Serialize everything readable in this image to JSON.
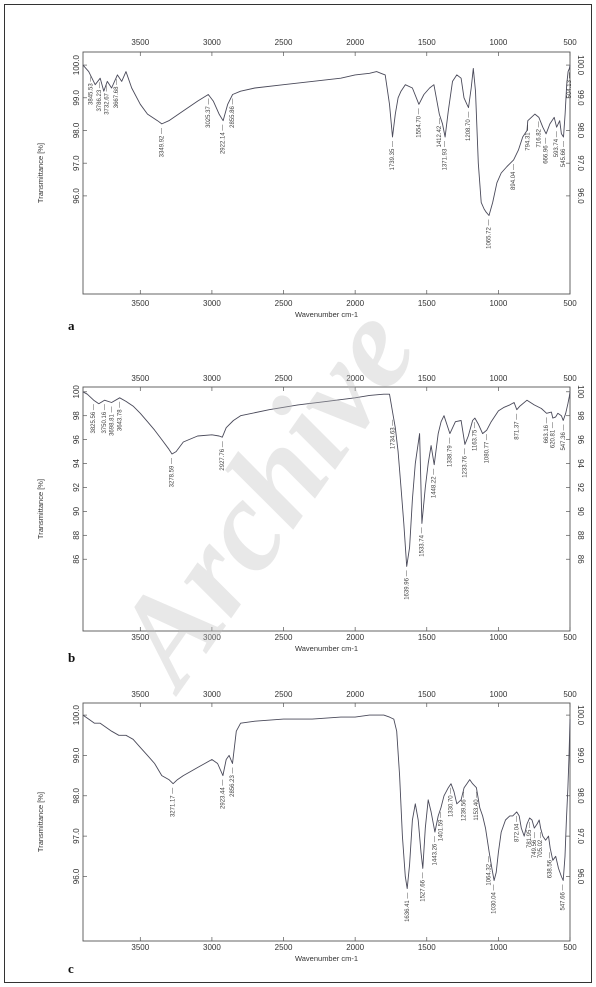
{
  "watermark": "Archive",
  "chart_data": [
    {
      "type": "line",
      "panel": "a",
      "xlabel": "Wavenumber cm-1",
      "ylabel": "Transmittance [%]",
      "xlim": [
        3900,
        500
      ],
      "ylim": [
        93.0,
        100.4
      ],
      "x_ticks": [
        3500,
        3000,
        2500,
        2000,
        1500,
        1000,
        500
      ],
      "y_ticks": [
        96.0,
        97.0,
        98.0,
        99.0,
        100.0
      ],
      "series": [
        {
          "x": [
            3900,
            3860,
            3815,
            3780,
            3755,
            3730,
            3700,
            3660,
            3630,
            3600,
            3560,
            3500,
            3450,
            3380,
            3349.92,
            3300,
            3200,
            3100,
            3025.37,
            2990,
            2950,
            2922.14,
            2890,
            2855.86,
            2800,
            2700,
            2500,
            2300,
            2100,
            2000,
            1900,
            1850,
            1820,
            1790,
            1760,
            1739.35,
            1720,
            1700,
            1680,
            1650,
            1600,
            1554.7,
            1520,
            1480,
            1450,
            1412.42,
            1390,
            1371.93,
            1350,
            1320,
            1290,
            1260,
            1240,
            1220,
            1208.7,
            1190,
            1175,
            1160,
            1140,
            1120,
            1100,
            1085,
            1065.72,
            1040,
            1010,
            980,
            940,
            894.04,
            860,
            830,
            800,
            794.31,
            770,
            745,
            716.82,
            690,
            666.96,
            640,
            610,
            593.74,
            572,
            560,
            545.66,
            534,
            523,
            513,
            504,
            500
          ],
          "y": [
            100.0,
            99.8,
            99.4,
            99.6,
            99.2,
            99.5,
            99.3,
            99.7,
            99.5,
            99.8,
            99.3,
            98.8,
            98.5,
            98.3,
            98.2,
            98.3,
            98.6,
            98.9,
            99.1,
            98.9,
            98.5,
            98.3,
            98.8,
            99.1,
            99.2,
            99.3,
            99.4,
            99.5,
            99.6,
            99.7,
            99.75,
            99.8,
            99.75,
            99.7,
            98.8,
            97.8,
            98.5,
            99.0,
            99.2,
            99.4,
            99.3,
            98.8,
            99.1,
            99.3,
            99.4,
            98.5,
            98.2,
            97.8,
            98.6,
            99.5,
            99.7,
            99.6,
            99.0,
            98.8,
            98.7,
            99.3,
            99.9,
            99.2,
            97.0,
            95.8,
            95.6,
            95.5,
            95.4,
            95.8,
            96.4,
            96.7,
            96.9,
            97.1,
            97.4,
            97.8,
            98.0,
            98.3,
            98.4,
            98.5,
            98.4,
            98.1,
            97.9,
            98.2,
            98.4,
            98.1,
            98.3,
            97.9,
            97.8,
            98.5,
            99.4,
            99.8,
            99.9,
            100.0
          ]
        }
      ],
      "peak_labels": [
        "3845.53",
        "3786.23",
        "3732.67",
        "3667.68",
        "3349.92",
        "3025.37",
        "2922.14",
        "2855.86",
        "1739.35",
        "1554.70",
        "1412.42",
        "1371.93",
        "1208.70",
        "1065.72",
        "894.04",
        "794.31",
        "716.82",
        "666.96",
        "593.74",
        "545.66",
        "504.13"
      ]
    },
    {
      "type": "line",
      "panel": "b",
      "xlabel": "Wavenumber cm-1",
      "ylabel": "Transmittance [%]",
      "xlim": [
        3900,
        500
      ],
      "ylim": [
        80,
        100.4
      ],
      "x_ticks": [
        3500,
        3000,
        2500,
        2000,
        1500,
        1000,
        500
      ],
      "y_ticks": [
        86,
        88,
        90,
        92,
        94,
        96,
        98,
        100
      ],
      "series": [
        {
          "x": [
            3900,
            3870,
            3825.56,
            3790,
            3750.16,
            3700,
            3643.78,
            3600,
            3550,
            3500,
            3450,
            3400,
            3350,
            3300,
            3278.59,
            3250,
            3200,
            3100,
            3000,
            2950,
            2927.76,
            2900,
            2850,
            2800,
            2600,
            2400,
            2200,
            2000,
            1900,
            1800,
            1760,
            1734.63,
            1720,
            1700,
            1680,
            1660,
            1639.96,
            1620,
            1600,
            1580,
            1550,
            1533.74,
            1510,
            1490,
            1470,
            1448.22,
            1420,
            1400,
            1380,
            1338.79,
            1300,
            1260,
            1233.76,
            1210,
            1180,
            1163.75,
            1140,
            1110,
            1080.77,
            1050,
            1000,
            960,
            920,
            890,
            871.37,
            850,
            800,
            750,
            700,
            663.16,
            630,
            620,
            600,
            585,
            560,
            547.36,
            530,
            515,
            505,
            500
          ],
          "y": [
            100,
            99.8,
            99.3,
            99.0,
            99.3,
            99.1,
            99.5,
            99.2,
            98.8,
            98.2,
            97.5,
            96.8,
            96.0,
            95.2,
            94.8,
            95.0,
            95.8,
            96.3,
            96.4,
            96.3,
            96.2,
            97.0,
            97.6,
            98.0,
            98.5,
            98.9,
            99.2,
            99.5,
            99.7,
            99.8,
            99.8,
            98.0,
            97.0,
            95.0,
            92.0,
            89.0,
            85.4,
            87.0,
            91.0,
            94.0,
            96.5,
            89.0,
            92.0,
            94.0,
            95.5,
            93.9,
            96.5,
            97.5,
            98.0,
            96.5,
            97.5,
            97.6,
            95.6,
            96.3,
            97.6,
            97.8,
            97.3,
            96.5,
            96.8,
            97.5,
            98.4,
            98.7,
            98.9,
            99.1,
            98.5,
            98.8,
            99.3,
            98.9,
            98.6,
            98.2,
            98.3,
            97.8,
            97.9,
            98.2,
            98.0,
            97.6,
            98.2,
            99.0,
            99.6,
            100.0
          ]
        }
      ],
      "peak_labels": [
        "3825.56",
        "3750.16",
        "3698.81",
        "3643.78",
        "3278.59",
        "2927.76",
        "1734.63",
        "1639.96",
        "1533.74",
        "1448.22",
        "1338.79",
        "1233.76",
        "1163.75",
        "1080.77",
        "871.37",
        "663.16",
        "620.81",
        "547.36"
      ]
    },
    {
      "type": "line",
      "panel": "c",
      "xlabel": "Wavenumber cm-1",
      "ylabel": "Transmittance [%]",
      "xlim": [
        3900,
        500
      ],
      "ylim": [
        94.4,
        100.3
      ],
      "x_ticks": [
        3500,
        3000,
        2500,
        2000,
        1500,
        1000,
        500
      ],
      "y_ticks": [
        96.0,
        97.0,
        98.0,
        99.0,
        100.0
      ],
      "series": [
        {
          "x": [
            3900,
            3860,
            3820,
            3780,
            3740,
            3700,
            3650,
            3600,
            3550,
            3500,
            3450,
            3400,
            3350,
            3300,
            3271.17,
            3240,
            3200,
            3150,
            3100,
            3050,
            3000,
            2960,
            2923.44,
            2900,
            2880,
            2856.23,
            2830,
            2800,
            2700,
            2500,
            2300,
            2100,
            2000,
            1900,
            1800,
            1760,
            1730,
            1710,
            1690,
            1670,
            1650,
            1636.41,
            1620,
            1600,
            1580,
            1560,
            1540,
            1527.66,
            1510,
            1490,
            1470,
            1443.26,
            1420,
            1401.59,
            1380,
            1350,
            1330.7,
            1310,
            1290,
            1260,
            1239.56,
            1220,
            1200,
            1180,
            1153.4,
            1130,
            1110,
            1090,
            1064.32,
            1045,
            1030.04,
            1015,
            1000,
            980,
            950,
            920,
            900,
            872.04,
            855,
            840,
            820,
            800,
            781.95,
            765,
            749.56,
            730,
            715,
            705.02,
            690,
            670,
            650,
            638.56,
            620,
            600,
            580,
            560,
            547.66,
            535,
            525,
            515,
            508,
            503,
            500
          ],
          "y": [
            100.0,
            99.9,
            99.8,
            99.8,
            99.7,
            99.6,
            99.5,
            99.5,
            99.4,
            99.2,
            99.0,
            98.8,
            98.5,
            98.4,
            98.3,
            98.4,
            98.5,
            98.6,
            98.7,
            98.8,
            98.9,
            98.8,
            98.5,
            98.9,
            99.0,
            98.8,
            99.6,
            99.8,
            99.85,
            99.9,
            99.9,
            99.95,
            99.95,
            100.0,
            100.0,
            99.95,
            99.9,
            99.6,
            98.5,
            97.0,
            96.0,
            95.7,
            96.3,
            97.4,
            97.8,
            97.4,
            96.6,
            96.2,
            97.2,
            97.9,
            97.6,
            97.1,
            97.5,
            97.7,
            98.0,
            98.2,
            98.3,
            98.1,
            97.8,
            97.9,
            98.2,
            98.3,
            98.4,
            98.3,
            98.2,
            97.7,
            97.5,
            97.2,
            96.6,
            96.2,
            95.9,
            96.1,
            96.6,
            97.1,
            97.4,
            97.5,
            97.5,
            97.6,
            97.5,
            97.2,
            97.0,
            97.3,
            97.45,
            97.4,
            97.2,
            97.3,
            97.4,
            97.2,
            97.0,
            96.9,
            97.0,
            96.7,
            96.4,
            96.5,
            96.2,
            96.0,
            95.9,
            96.5,
            97.4,
            98.2,
            98.9,
            99.5,
            99.9
          ]
        }
      ],
      "peak_labels": [
        "3271.17",
        "2923.44",
        "2856.23",
        "1636.41",
        "1527.66",
        "1443.26",
        "1401.59",
        "1330.70",
        "1239.56",
        "1153.40",
        "1064.32",
        "1030.04",
        "872.04",
        "781.95",
        "749.56",
        "705.02",
        "638.56",
        "547.66"
      ]
    }
  ]
}
